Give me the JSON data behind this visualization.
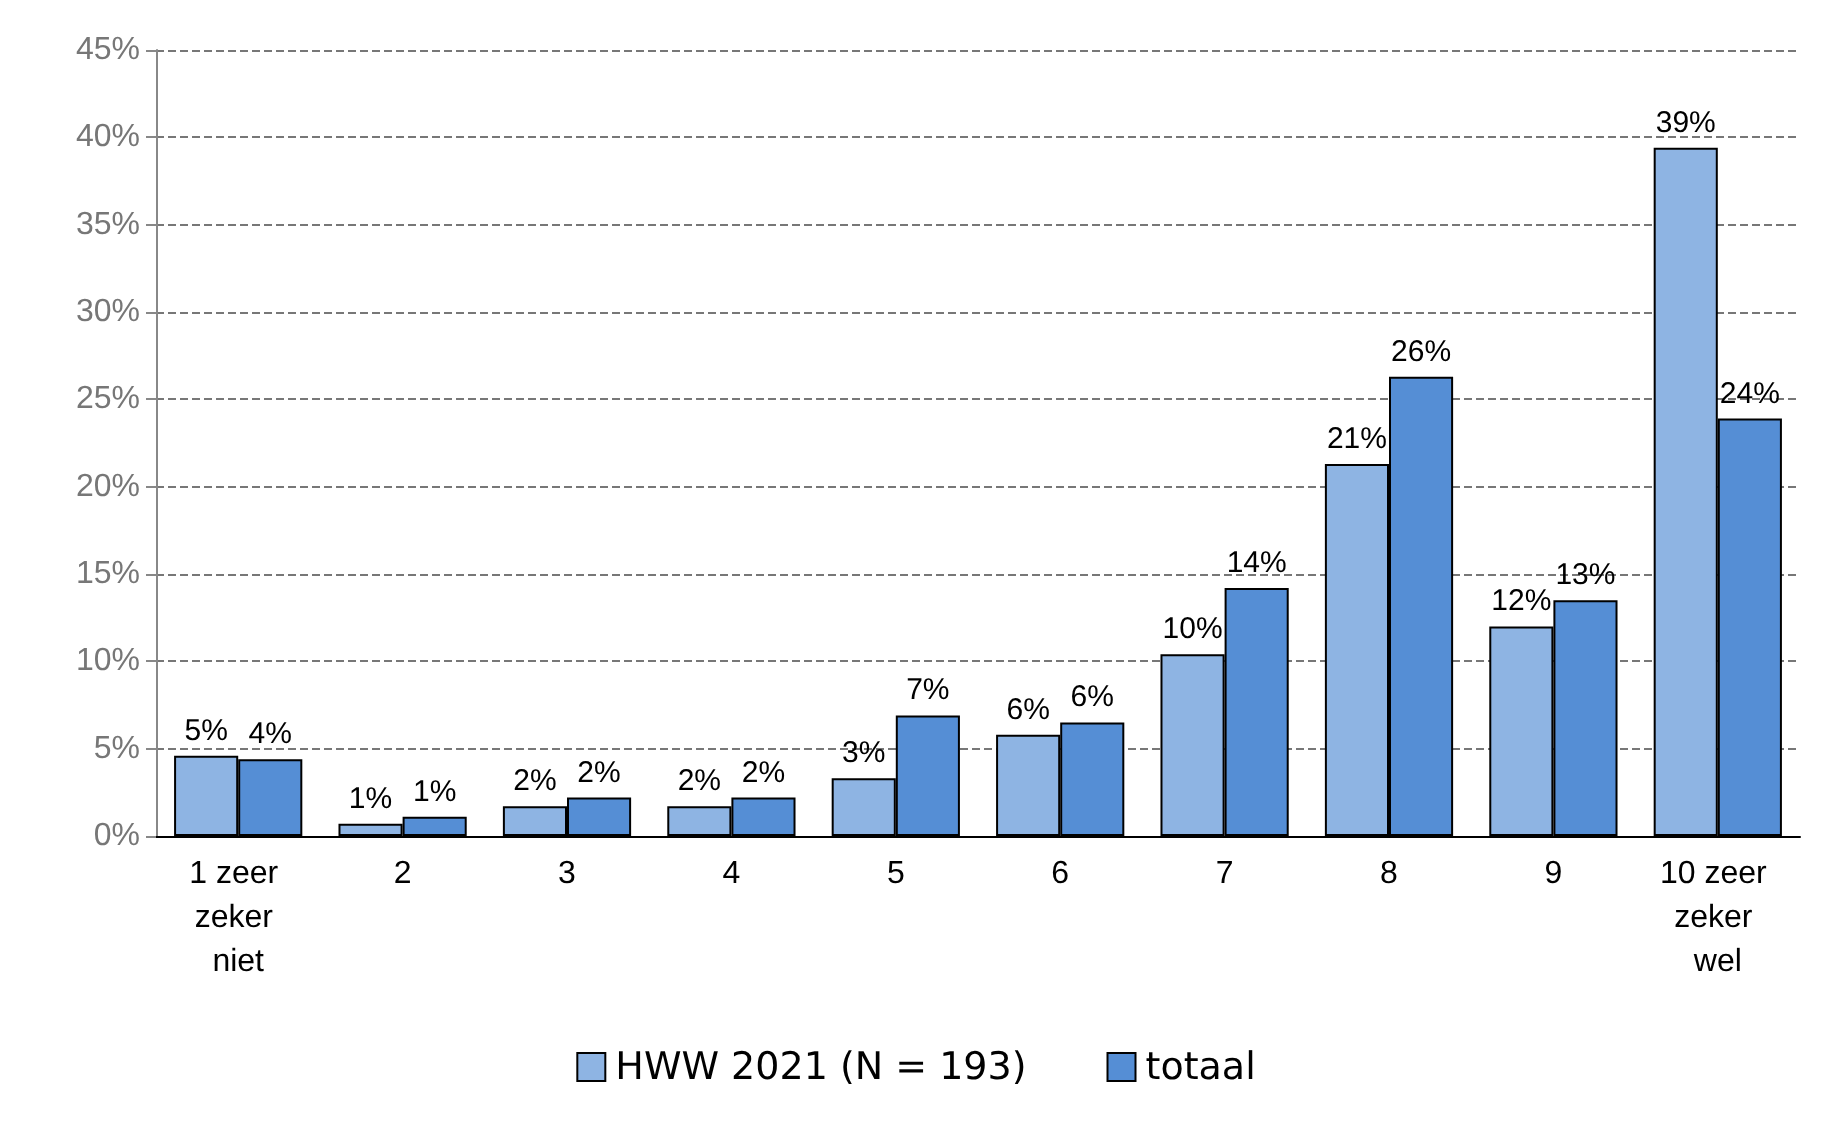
{
  "chart_data": {
    "type": "bar",
    "categories": [
      "1 zeer zeker niet",
      "2",
      "3",
      "4",
      "5",
      "6",
      "7",
      "8",
      "9",
      "10 zeer zeker wel"
    ],
    "series": [
      {
        "name": "HWW 2021 (N = 193)",
        "color": "#8eb4e3",
        "values": [
          4.6,
          0.7,
          1.7,
          1.7,
          3.3,
          5.8,
          10.4,
          21.3,
          12.0,
          39.4
        ],
        "value_labels": [
          "5%",
          "1%",
          "2%",
          "2%",
          "3%",
          "6%",
          "10%",
          "21%",
          "12%",
          "39%"
        ]
      },
      {
        "name": "totaal",
        "color": "#558ed5",
        "values": [
          4.4,
          1.1,
          2.2,
          2.2,
          6.9,
          6.5,
          14.2,
          26.3,
          13.5,
          23.9
        ],
        "value_labels": [
          "4%",
          "1%",
          "2%",
          "2%",
          "7%",
          "6%",
          "14%",
          "26%",
          "13%",
          "24%"
        ]
      }
    ],
    "ylim": [
      0,
      45
    ],
    "yticks": [
      {
        "value": 0,
        "label": "0%"
      },
      {
        "value": 5,
        "label": "5%"
      },
      {
        "value": 10,
        "label": "10%"
      },
      {
        "value": 15,
        "label": "15%"
      },
      {
        "value": 20,
        "label": "20%"
      },
      {
        "value": 25,
        "label": "25%"
      },
      {
        "value": 30,
        "label": "30%"
      },
      {
        "value": 35,
        "label": "35%"
      },
      {
        "value": 40,
        "label": "40%"
      },
      {
        "value": 45,
        "label": "45%"
      }
    ],
    "grid": "y",
    "legend": "bottom"
  }
}
